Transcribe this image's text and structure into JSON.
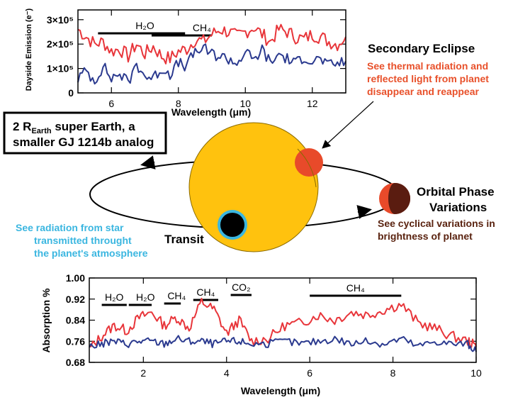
{
  "chart_data": [
    {
      "type": "line",
      "title": "",
      "xlabel": "Wavelength (μm)",
      "ylabel": "Dayside Emission (e⁻)",
      "xlim": [
        5.0,
        13.0
      ],
      "ylim": [
        0,
        340000
      ],
      "x_ticks": [
        "6",
        "8",
        "10",
        "12"
      ],
      "y_ticks": [
        "0",
        "1×10⁵",
        "2×10⁵",
        "3×10⁵"
      ],
      "bands": [
        {
          "label": "H₂O",
          "label_x": 7.0,
          "from": 5.6,
          "to": 8.2
        },
        {
          "label": "CH₄",
          "label_x": 8.7,
          "from": 7.2,
          "to": 9.0
        }
      ],
      "series": [
        {
          "name": "red",
          "color": "#e8353a",
          "x": [
            5.0,
            5.25,
            5.5,
            5.75,
            6.0,
            6.25,
            6.5,
            6.75,
            7.0,
            7.25,
            7.5,
            7.75,
            8.0,
            8.25,
            8.5,
            8.75,
            9.0,
            9.25,
            9.5,
            9.75,
            10.0,
            10.25,
            10.5,
            10.75,
            11.0,
            11.25,
            11.5,
            11.75,
            12.0,
            12.25,
            12.5,
            12.75,
            13.0
          ],
          "values": [
            260000,
            230000,
            200000,
            210000,
            170000,
            180000,
            150000,
            200000,
            160000,
            190000,
            150000,
            140000,
            170000,
            180000,
            220000,
            210000,
            240000,
            260000,
            250000,
            230000,
            250000,
            270000,
            240000,
            210000,
            260000,
            250000,
            230000,
            220000,
            240000,
            230000,
            210000,
            200000,
            230000
          ]
        },
        {
          "name": "blue",
          "color": "#2b3a8f",
          "x": [
            5.0,
            5.25,
            5.5,
            5.75,
            6.0,
            6.25,
            6.5,
            6.75,
            7.0,
            7.25,
            7.5,
            7.75,
            8.0,
            8.25,
            8.5,
            8.75,
            9.0,
            9.25,
            9.5,
            9.75,
            10.0,
            10.25,
            10.5,
            10.75,
            11.0,
            11.25,
            11.5,
            11.75,
            12.0,
            12.25,
            12.5,
            12.75,
            13.0
          ],
          "values": [
            60000,
            90000,
            50000,
            110000,
            60000,
            80000,
            40000,
            120000,
            70000,
            60000,
            100000,
            80000,
            120000,
            110000,
            170000,
            180000,
            160000,
            150000,
            140000,
            120000,
            170000,
            130000,
            180000,
            120000,
            160000,
            140000,
            120000,
            150000,
            130000,
            140000,
            110000,
            120000,
            130000
          ]
        }
      ]
    },
    {
      "type": "line",
      "title": "",
      "xlabel": "Wavelength (μm)",
      "ylabel": "Absorption %",
      "xlim": [
        0.7,
        10.0
      ],
      "ylim": [
        0.68,
        1.0
      ],
      "x_ticks": [
        "2",
        "4",
        "6",
        "8",
        "10"
      ],
      "y_ticks": [
        "0.68",
        "0.76",
        "0.84",
        "0.92",
        "1.00"
      ],
      "bands": [
        {
          "label": "H₂O",
          "label_x": 1.3,
          "from": 1.0,
          "to": 1.6
        },
        {
          "label": "H₂O",
          "label_x": 2.05,
          "from": 1.65,
          "to": 2.2
        },
        {
          "label": "CH₄",
          "label_x": 2.8,
          "from": 2.5,
          "to": 2.9
        },
        {
          "label": "CH₄",
          "label_x": 3.5,
          "from": 3.2,
          "to": 3.8
        },
        {
          "label": "CO₂",
          "label_x": 4.35,
          "from": 4.1,
          "to": 4.6
        },
        {
          "label": "CH₄",
          "label_x": 7.1,
          "from": 6.0,
          "to": 8.2
        }
      ],
      "series": [
        {
          "name": "red",
          "color": "#e8353a",
          "x": [
            0.7,
            1.0,
            1.3,
            1.6,
            1.9,
            2.2,
            2.5,
            2.8,
            3.1,
            3.4,
            3.7,
            4.0,
            4.3,
            4.6,
            5.0,
            5.4,
            5.8,
            6.2,
            6.6,
            7.0,
            7.4,
            7.8,
            8.2,
            8.6,
            9.0,
            9.4,
            9.8,
            10.0
          ],
          "values": [
            0.73,
            0.78,
            0.82,
            0.8,
            0.85,
            0.87,
            0.82,
            0.85,
            0.81,
            0.91,
            0.88,
            0.79,
            0.84,
            0.76,
            0.77,
            0.82,
            0.83,
            0.86,
            0.84,
            0.87,
            0.86,
            0.88,
            0.9,
            0.83,
            0.81,
            0.78,
            0.76,
            0.74
          ]
        },
        {
          "name": "blue",
          "color": "#2b3a8f",
          "x": [
            0.7,
            1.0,
            1.3,
            1.6,
            1.9,
            2.2,
            2.5,
            2.8,
            3.1,
            3.4,
            3.7,
            4.0,
            4.3,
            4.6,
            5.0,
            5.4,
            5.8,
            6.2,
            6.6,
            7.0,
            7.4,
            7.8,
            8.2,
            8.6,
            9.0,
            9.4,
            9.8,
            10.0
          ],
          "values": [
            0.74,
            0.75,
            0.76,
            0.75,
            0.76,
            0.76,
            0.75,
            0.77,
            0.76,
            0.76,
            0.75,
            0.76,
            0.76,
            0.75,
            0.75,
            0.76,
            0.75,
            0.76,
            0.77,
            0.75,
            0.76,
            0.75,
            0.77,
            0.74,
            0.76,
            0.75,
            0.75,
            0.72
          ]
        }
      ]
    }
  ],
  "diagram": {
    "planet_box": {
      "line1_pre": "2 R",
      "line1_sub": "Earth",
      "line1_post": " super Earth, a",
      "line2": "smaller GJ 1214b analog"
    },
    "secondary_eclipse": {
      "title": "Secondary Eclipse",
      "body_line1": "See thermal radiation and",
      "body_line2": "reflected light from planet",
      "body_line3": "disappear and reappear",
      "color": "#e8502a"
    },
    "orbital_phase": {
      "title_line1": "Orbital Phase",
      "title_line2": "Variations",
      "body_line1": "See cyclical variations in",
      "body_line2": "brightness of planet",
      "color": "#5a2310"
    },
    "transit": {
      "title": "Transit",
      "body_line1": "See radiation from star",
      "body_line2": "transmitted throught",
      "body_line3": "the planet's atmosphere",
      "color": "#3ab6e0"
    },
    "colors": {
      "star": "#ffc20e",
      "planet_red": "#e84a2a",
      "planet_dark": "#5a1c10",
      "planet_transit": "#000000",
      "transit_ring": "#3ab6e0"
    }
  }
}
